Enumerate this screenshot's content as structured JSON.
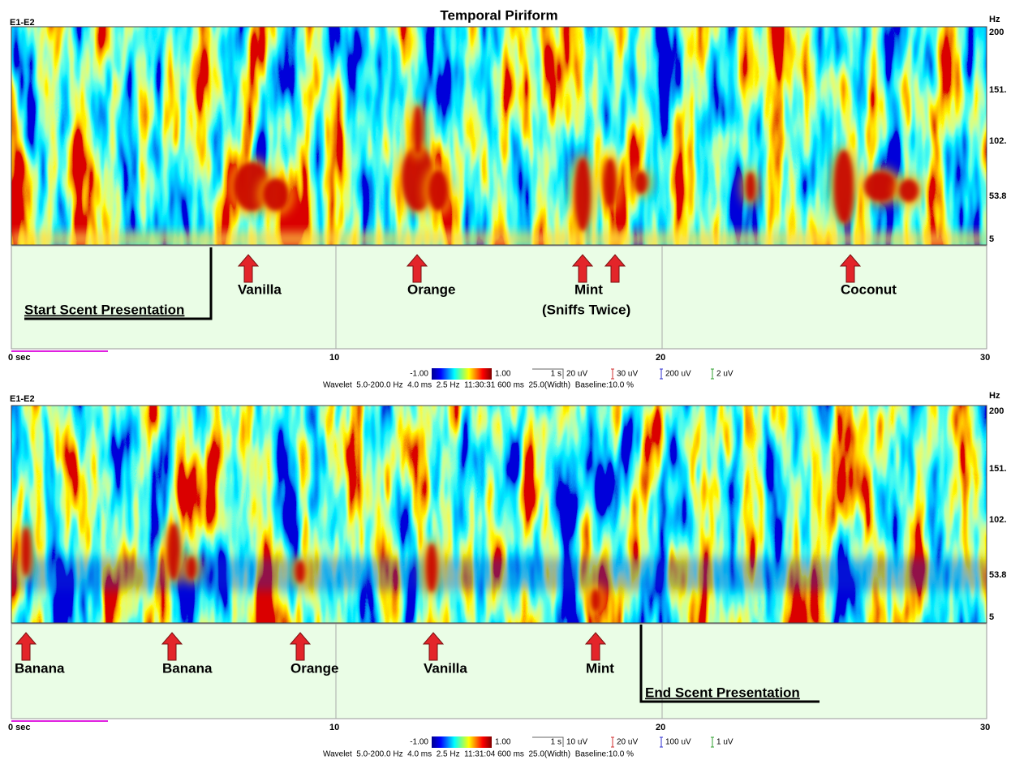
{
  "title": "Temporal Piriform",
  "panels": [
    {
      "channel": "E1-E2",
      "unit": "Hz",
      "freq_labels": [
        "200",
        "151.",
        "102.",
        "53.8",
        "5"
      ],
      "time_labels": [
        "0 sec",
        "10",
        "20",
        "30"
      ],
      "markers": [
        {
          "label": "Vanilla"
        },
        {
          "label": "Orange"
        },
        {
          "label": "Mint",
          "note": "(Sniffs Twice)"
        },
        {
          "label": "Coconut"
        }
      ],
      "bracket": "Start Scent Presentation",
      "legend": {
        "colorbar_min": "-1.00",
        "colorbar_max": "1.00",
        "time_scale": "1 s",
        "scales": [
          "20 uV",
          "30 uV",
          "200 uV",
          "2 uV"
        ],
        "info": "Wavelet  5.0-200.0 Hz  4.0 ms  2.5 Hz  11:30:31 600 ms  25.0(Width)  Baseline:10.0 %"
      }
    },
    {
      "channel": "E1-E2",
      "unit": "Hz",
      "freq_labels": [
        "200",
        "151.",
        "102.",
        "53.8",
        "5"
      ],
      "time_labels": [
        "0 sec",
        "10",
        "20",
        "30"
      ],
      "markers": [
        {
          "label": "Banana"
        },
        {
          "label": "Banana"
        },
        {
          "label": "Orange"
        },
        {
          "label": "Vanilla"
        },
        {
          "label": "Mint"
        }
      ],
      "bracket": "End Scent Presentation",
      "legend": {
        "colorbar_min": "-1.00",
        "colorbar_max": "1.00",
        "time_scale": "1 s",
        "scales": [
          "10 uV",
          "20 uV",
          "100 uV",
          "1 uV"
        ],
        "info": "Wavelet  5.0-200.0 Hz  4.0 ms  2.5 Hz  11:31:04 600 ms  25.0(Width)  Baseline:10.0 %"
      }
    }
  ]
}
